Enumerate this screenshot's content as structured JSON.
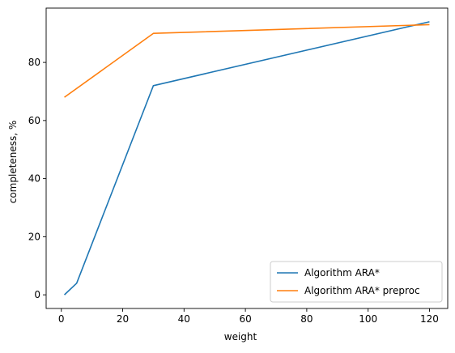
{
  "chart_data": {
    "type": "line",
    "title": "",
    "xlabel": "weight",
    "ylabel": "completeness, %",
    "xlim": [
      -4.95,
      125.95
    ],
    "ylim": [
      -4.7,
      98.7
    ],
    "xticks": [
      0,
      20,
      40,
      60,
      80,
      100,
      120
    ],
    "yticks": [
      0,
      20,
      40,
      60,
      80
    ],
    "grid": false,
    "legend_position": "bottom-right",
    "series": [
      {
        "name": "Algorithm ARA*",
        "color": "#1f77b4",
        "x": [
          1,
          5,
          30,
          120
        ],
        "y": [
          0,
          4,
          72,
          94
        ]
      },
      {
        "name": "Algorithm ARA* preproc",
        "color": "#ff7f0e",
        "x": [
          1,
          30,
          120
        ],
        "y": [
          68,
          90,
          93
        ]
      }
    ]
  }
}
